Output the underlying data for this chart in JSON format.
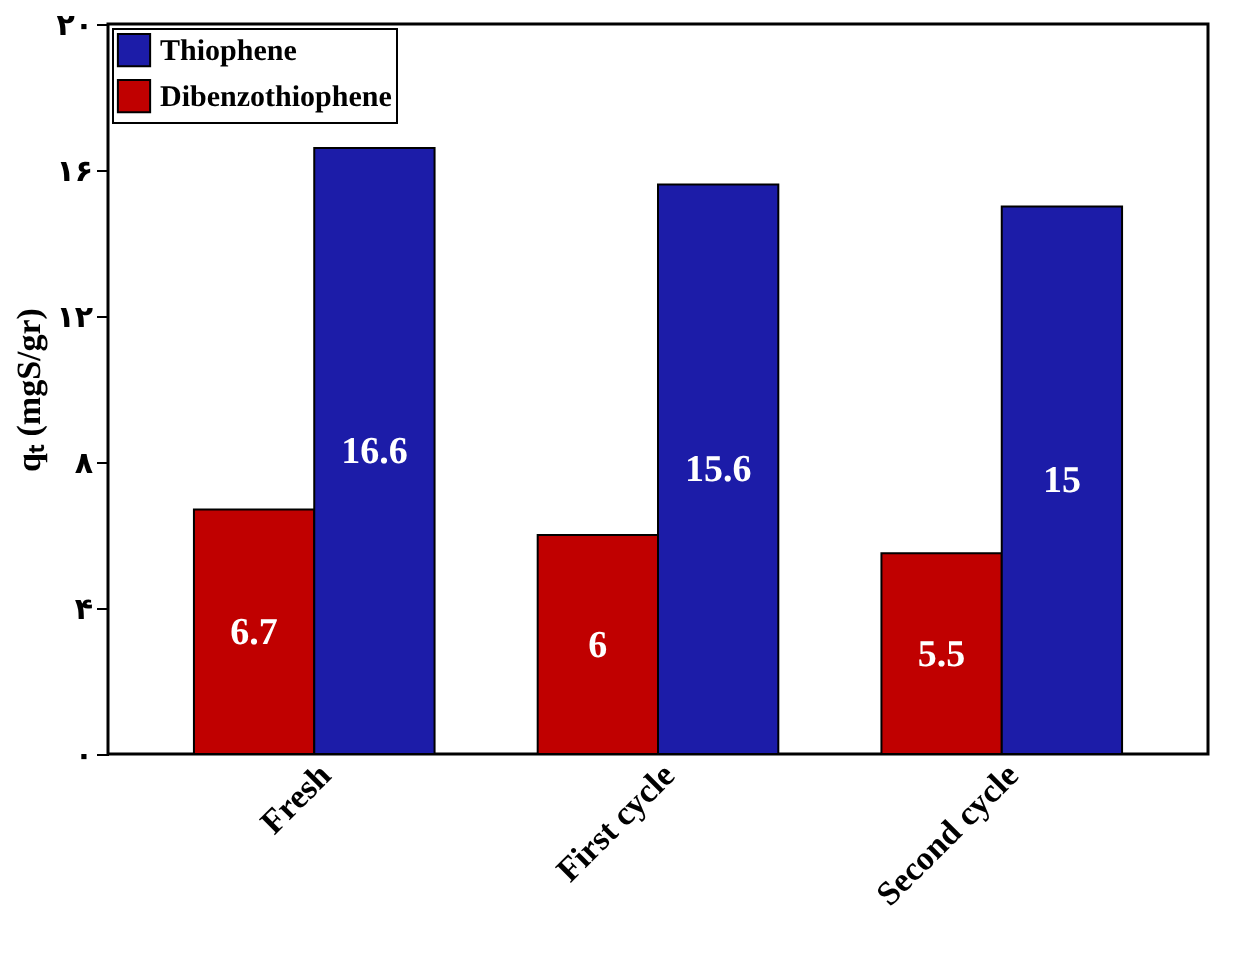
{
  "chart_data": {
    "type": "bar",
    "ylabel": "qₜ (mgS/gr)",
    "categories": [
      "Fresh",
      "First cycle",
      "Second cycle"
    ],
    "series": [
      {
        "name": "Dibenzothiophene",
        "color": "#c00000",
        "values": [
          6.7,
          6,
          5.5
        ]
      },
      {
        "name": "Thiophene",
        "color": "#1c1ca8",
        "values": [
          16.6,
          15.6,
          15
        ]
      }
    ],
    "ylim": [
      0,
      20
    ],
    "yticks": [
      {
        "value": 0,
        "label": "۰"
      },
      {
        "value": 4,
        "label": "۴"
      },
      {
        "value": 8,
        "label": "۸"
      },
      {
        "value": 12,
        "label": "۱۲"
      },
      {
        "value": 16,
        "label": "۱۶"
      },
      {
        "value": 20,
        "label": "۲۰"
      }
    ],
    "data_labels": true,
    "legend": "top left",
    "grid": false
  }
}
